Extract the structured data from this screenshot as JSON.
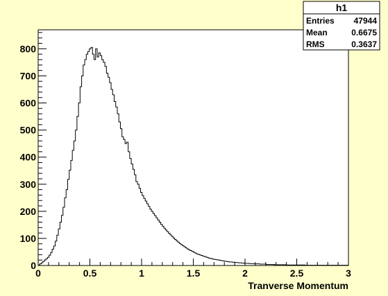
{
  "chart_data": {
    "type": "bar",
    "histogram_name": "h1",
    "xlabel": "Tranverse Momentum",
    "ylabel": "",
    "xlim": [
      0,
      3
    ],
    "ylim": [
      0,
      870
    ],
    "x_ticks": [
      0,
      0.5,
      1,
      1.5,
      2,
      2.5,
      3
    ],
    "x_tick_labels": [
      "0",
      "0.5",
      "1",
      "1.5",
      "2",
      "2.5",
      "3"
    ],
    "y_ticks": [
      0,
      100,
      200,
      300,
      400,
      500,
      600,
      700,
      800
    ],
    "y_tick_labels": [
      "0",
      "100",
      "200",
      "300",
      "400",
      "500",
      "600",
      "700",
      "800"
    ],
    "grid": false,
    "legend": "stats box, top-right",
    "bin_width": 0.015,
    "bin_contents": [
      2,
      6,
      10,
      15,
      20,
      25,
      30,
      38,
      48,
      60,
      72,
      90,
      112,
      135,
      160,
      185,
      215,
      250,
      280,
      318,
      352,
      388,
      425,
      460,
      500,
      550,
      600,
      660,
      700,
      740,
      760,
      780,
      790,
      800,
      805,
      780,
      760,
      800,
      770,
      785,
      775,
      760,
      750,
      735,
      710,
      695,
      675,
      650,
      630,
      605,
      585,
      560,
      530,
      505,
      475,
      465,
      450,
      455,
      420,
      395,
      375,
      355,
      335,
      310,
      300,
      285,
      270,
      258,
      248,
      238,
      228,
      218,
      208,
      200,
      192,
      184,
      176,
      168,
      160,
      152,
      145,
      138,
      131,
      125,
      119,
      113,
      107,
      101,
      96,
      91,
      86,
      81,
      77,
      73,
      69,
      65,
      61,
      58,
      55,
      52,
      49,
      46,
      43,
      41,
      39,
      37,
      35,
      33,
      31,
      29,
      27,
      26,
      24,
      23,
      22,
      21,
      20,
      19,
      18,
      17,
      16,
      15,
      14,
      13,
      13,
      12,
      12,
      11,
      11,
      10,
      10,
      9,
      9,
      8,
      8,
      8,
      7,
      7,
      7,
      6,
      6,
      6,
      6,
      5,
      5,
      5,
      5,
      4,
      4,
      4,
      4,
      4,
      3,
      3,
      3,
      3,
      3,
      3,
      3,
      3,
      2,
      2,
      2,
      2,
      2,
      2,
      2,
      2,
      2,
      2,
      2,
      2,
      1,
      1,
      1,
      1,
      1,
      1,
      1,
      1,
      1,
      1,
      1,
      1,
      1,
      1,
      1,
      1,
      1,
      1,
      1,
      1,
      1,
      1,
      1,
      1,
      1,
      1,
      1,
      1
    ],
    "stats": [
      {
        "label": "Entries",
        "value": "47944"
      },
      {
        "label": "Mean",
        "value": "0.6675"
      },
      {
        "label": "RMS",
        "value": "0.3637"
      }
    ],
    "colors": {
      "background": "#ffffcc",
      "frame": "#ffffff",
      "line": "#000000"
    }
  }
}
